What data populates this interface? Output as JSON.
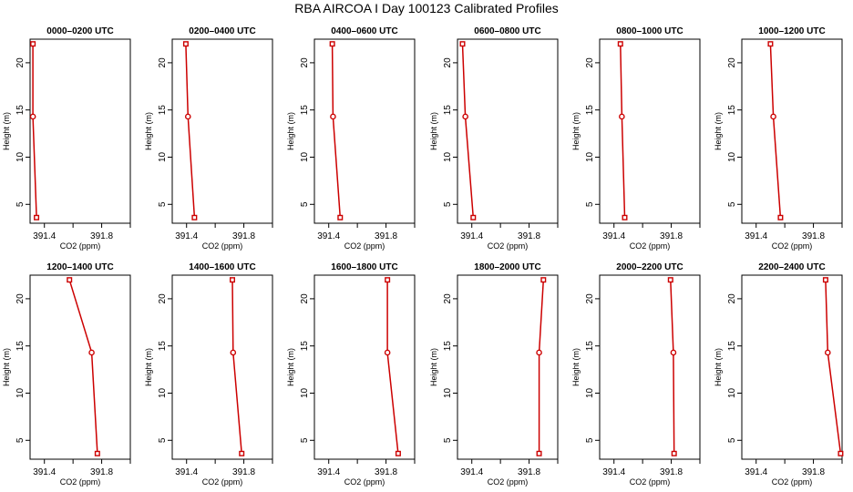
{
  "figure_title": "RBA AIRCOA I  Day 100123  Calibrated Profiles",
  "chart_data": [
    {
      "type": "line",
      "title": "0000–0200 UTC",
      "xlabel": "CO2 (ppm)",
      "ylabel": "Height (m)",
      "xlim": [
        391.3,
        392.0
      ],
      "ylim": [
        3,
        22.5
      ],
      "x_ticks": [
        "391.4",
        "391.8"
      ],
      "y_ticks": [
        "5",
        "10",
        "15",
        "20"
      ],
      "y": [
        22,
        14.3,
        3.6
      ],
      "x": [
        391.32,
        391.32,
        391.345
      ],
      "markers": [
        "square",
        "circle",
        "square"
      ],
      "color": "#cc0000"
    },
    {
      "type": "line",
      "title": "0200–0400 UTC",
      "xlabel": "CO2 (ppm)",
      "ylabel": "Height (m)",
      "xlim": [
        391.3,
        392.0
      ],
      "ylim": [
        3,
        22.5
      ],
      "x_ticks": [
        "391.4",
        "391.8"
      ],
      "y_ticks": [
        "5",
        "10",
        "15",
        "20"
      ],
      "y": [
        22,
        14.3,
        3.6
      ],
      "x": [
        391.395,
        391.41,
        391.455
      ],
      "markers": [
        "square",
        "circle",
        "square"
      ],
      "color": "#cc0000"
    },
    {
      "type": "line",
      "title": "0400–0600 UTC",
      "xlabel": "CO2 (ppm)",
      "ylabel": "Height (m)",
      "xlim": [
        391.3,
        392.0
      ],
      "ylim": [
        3,
        22.5
      ],
      "x_ticks": [
        "391.4",
        "391.8"
      ],
      "y_ticks": [
        "5",
        "10",
        "15",
        "20"
      ],
      "y": [
        22,
        14.3,
        3.6
      ],
      "x": [
        391.425,
        391.43,
        391.48
      ],
      "markers": [
        "square",
        "circle",
        "square"
      ],
      "color": "#cc0000"
    },
    {
      "type": "line",
      "title": "0600–0800 UTC",
      "xlabel": "CO2 (ppm)",
      "ylabel": "Height (m)",
      "xlim": [
        391.3,
        392.0
      ],
      "ylim": [
        3,
        22.5
      ],
      "x_ticks": [
        "391.4",
        "391.8"
      ],
      "y_ticks": [
        "5",
        "10",
        "15",
        "20"
      ],
      "y": [
        22,
        14.3,
        3.6
      ],
      "x": [
        391.335,
        391.355,
        391.41
      ],
      "markers": [
        "square",
        "circle",
        "square"
      ],
      "color": "#cc0000"
    },
    {
      "type": "line",
      "title": "0800–1000 UTC",
      "xlabel": "CO2 (ppm)",
      "ylabel": "Height (m)",
      "xlim": [
        391.3,
        392.0
      ],
      "ylim": [
        3,
        22.5
      ],
      "x_ticks": [
        "391.4",
        "391.8"
      ],
      "y_ticks": [
        "5",
        "10",
        "15",
        "20"
      ],
      "y": [
        22,
        14.3,
        3.6
      ],
      "x": [
        391.445,
        391.455,
        391.475
      ],
      "markers": [
        "square",
        "circle",
        "square"
      ],
      "color": "#cc0000"
    },
    {
      "type": "line",
      "title": "1000–1200 UTC",
      "xlabel": "CO2 (ppm)",
      "ylabel": "Height (m)",
      "xlim": [
        391.3,
        392.0
      ],
      "ylim": [
        3,
        22.5
      ],
      "x_ticks": [
        "391.4",
        "391.8"
      ],
      "y_ticks": [
        "5",
        "10",
        "15",
        "20"
      ],
      "y": [
        22,
        14.3,
        3.6
      ],
      "x": [
        391.5,
        391.52,
        391.57
      ],
      "markers": [
        "square",
        "circle",
        "square"
      ],
      "color": "#cc0000"
    },
    {
      "type": "line",
      "title": "1200–1400 UTC",
      "xlabel": "CO2 (ppm)",
      "ylabel": "Height (m)",
      "xlim": [
        391.3,
        392.0
      ],
      "ylim": [
        3,
        22.5
      ],
      "x_ticks": [
        "391.4",
        "391.8"
      ],
      "y_ticks": [
        "5",
        "10",
        "15",
        "20"
      ],
      "y": [
        22,
        14.3,
        3.6
      ],
      "x": [
        391.575,
        391.73,
        391.77
      ],
      "markers": [
        "square",
        "circle",
        "square"
      ],
      "color": "#cc0000"
    },
    {
      "type": "line",
      "title": "1400–1600 UTC",
      "xlabel": "CO2 (ppm)",
      "ylabel": "Height (m)",
      "xlim": [
        391.3,
        392.0
      ],
      "ylim": [
        3,
        22.5
      ],
      "x_ticks": [
        "391.4",
        "391.8"
      ],
      "y_ticks": [
        "5",
        "10",
        "15",
        "20"
      ],
      "y": [
        22,
        14.3,
        3.6
      ],
      "x": [
        391.72,
        391.725,
        391.785
      ],
      "markers": [
        "square",
        "circle",
        "square"
      ],
      "color": "#cc0000"
    },
    {
      "type": "line",
      "title": "1600–1800 UTC",
      "xlabel": "CO2 (ppm)",
      "ylabel": "Height (m)",
      "xlim": [
        391.3,
        392.0
      ],
      "ylim": [
        3,
        22.5
      ],
      "x_ticks": [
        "391.4",
        "391.8"
      ],
      "y_ticks": [
        "5",
        "10",
        "15",
        "20"
      ],
      "y": [
        22,
        14.3,
        3.6
      ],
      "x": [
        391.81,
        391.81,
        391.885
      ],
      "markers": [
        "square",
        "circle",
        "square"
      ],
      "color": "#cc0000"
    },
    {
      "type": "line",
      "title": "1800–2000 UTC",
      "xlabel": "CO2 (ppm)",
      "ylabel": "Height (m)",
      "xlim": [
        391.3,
        392.0
      ],
      "ylim": [
        3,
        22.5
      ],
      "x_ticks": [
        "391.4",
        "391.8"
      ],
      "y_ticks": [
        "5",
        "10",
        "15",
        "20"
      ],
      "y": [
        22,
        14.3,
        3.6
      ],
      "x": [
        391.9,
        391.87,
        391.87
      ],
      "markers": [
        "square",
        "circle",
        "square"
      ],
      "color": "#cc0000"
    },
    {
      "type": "line",
      "title": "2000–2200 UTC",
      "xlabel": "CO2 (ppm)",
      "ylabel": "Height (m)",
      "xlim": [
        391.3,
        392.0
      ],
      "ylim": [
        3,
        22.5
      ],
      "x_ticks": [
        "391.4",
        "391.8"
      ],
      "y_ticks": [
        "5",
        "10",
        "15",
        "20"
      ],
      "y": [
        22,
        14.3,
        3.6
      ],
      "x": [
        391.795,
        391.815,
        391.82
      ],
      "markers": [
        "square",
        "circle",
        "square"
      ],
      "color": "#cc0000"
    },
    {
      "type": "line",
      "title": "2200–2400 UTC",
      "xlabel": "CO2 (ppm)",
      "ylabel": "Height (m)",
      "xlim": [
        391.3,
        392.0
      ],
      "ylim": [
        3,
        22.5
      ],
      "x_ticks": [
        "391.4",
        "391.8"
      ],
      "y_ticks": [
        "5",
        "10",
        "15",
        "20"
      ],
      "y": [
        22,
        14.3,
        3.6
      ],
      "x": [
        391.885,
        391.9,
        391.99
      ],
      "markers": [
        "square",
        "circle",
        "square"
      ],
      "color": "#cc0000"
    }
  ]
}
